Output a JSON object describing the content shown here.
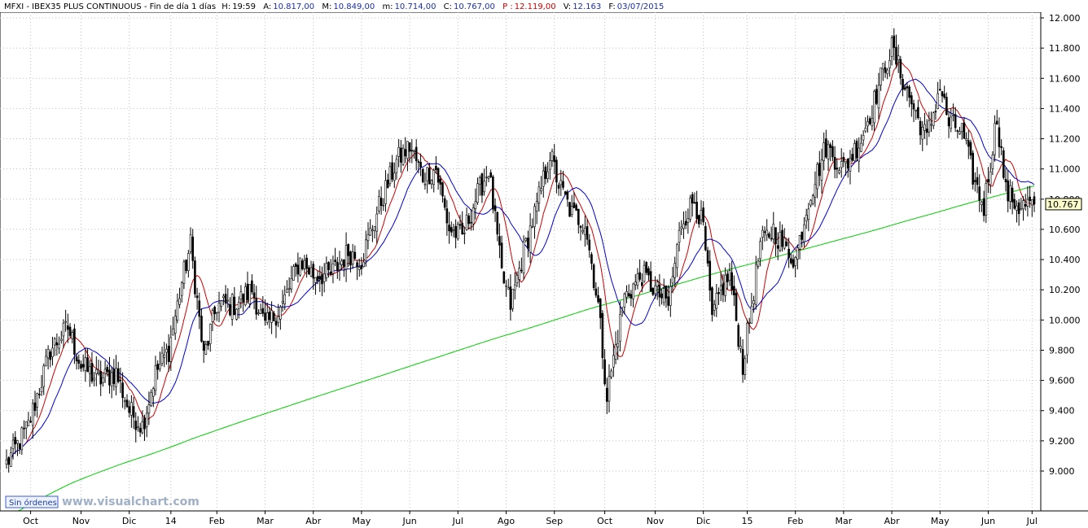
{
  "header": {
    "symbol": "MFXI - IBEX35 PLUS CONTINUOUS - Fin de día 1 días",
    "h_label": "H:",
    "h_value": "19:59",
    "a_label": "A:",
    "a_value": "10.817,00",
    "m_label": "M:",
    "m_value": "10.849,00",
    "min_label": "m:",
    "min_value": "10.714,00",
    "c_label": "C:",
    "c_value": "10.767,00",
    "p_label": "P :",
    "p_value": "12.119,00",
    "v_label": "V:",
    "v_value": "12.163",
    "f_label": "F:",
    "f_value": "03/07/2015"
  },
  "badge": {
    "label": "Sin órdenes"
  },
  "watermark": {
    "text": "www.visualchart.com"
  },
  "colors": {
    "candle": "#000000",
    "ma_fast": "#cc0000",
    "ma_mid": "#0000cc",
    "ma_slow": "#00cc00",
    "last_label_bg": "#ffffcc",
    "header_bg": "#ffffff",
    "grid": "#bfbfbf"
  },
  "chart_data": {
    "type": "candlestick",
    "title": "",
    "ylim": [
      8800,
      12050
    ],
    "y_ticks": [
      "12.000",
      "11.800",
      "11.600",
      "11.400",
      "11.200",
      "11.000",
      "10.800",
      "10.600",
      "10.400",
      "10.200",
      "10.000",
      "9.800",
      "9.600",
      "9.400",
      "9.200",
      "9.000"
    ],
    "y_tick_values": [
      12000,
      11800,
      11600,
      11400,
      11200,
      11000,
      10800,
      10600,
      10400,
      10200,
      10000,
      9800,
      9600,
      9400,
      9200,
      9000
    ],
    "x_ticks": [
      "Oct",
      "Nov",
      "Dic",
      "14",
      "Feb",
      "Mar",
      "Abr",
      "May",
      "Jun",
      "Jul",
      "Ago",
      "Sep",
      "Oct",
      "Nov",
      "Dic",
      "15",
      "Feb",
      "Mar",
      "Abr",
      "May",
      "Jun",
      "Jul"
    ],
    "x_tick_index": [
      11,
      34,
      56,
      75,
      96,
      118,
      140,
      162,
      184,
      206,
      228,
      250,
      273,
      296,
      318,
      338,
      360,
      382,
      404,
      426,
      448,
      468
    ],
    "bar_count": 470,
    "close_anchors": [
      [
        0,
        9050
      ],
      [
        10,
        9300
      ],
      [
        20,
        9800
      ],
      [
        28,
        9950
      ],
      [
        34,
        9700
      ],
      [
        42,
        9600
      ],
      [
        50,
        9650
      ],
      [
        56,
        9400
      ],
      [
        62,
        9300
      ],
      [
        68,
        9650
      ],
      [
        74,
        9800
      ],
      [
        80,
        10250
      ],
      [
        84,
        10500
      ],
      [
        90,
        9750
      ],
      [
        96,
        10100
      ],
      [
        104,
        10100
      ],
      [
        112,
        10200
      ],
      [
        118,
        9950
      ],
      [
        126,
        10100
      ],
      [
        134,
        10400
      ],
      [
        140,
        10300
      ],
      [
        148,
        10300
      ],
      [
        156,
        10450
      ],
      [
        162,
        10400
      ],
      [
        170,
        10750
      ],
      [
        178,
        11050
      ],
      [
        184,
        11150
      ],
      [
        190,
        10950
      ],
      [
        196,
        11000
      ],
      [
        202,
        10600
      ],
      [
        208,
        10550
      ],
      [
        214,
        10800
      ],
      [
        220,
        11000
      ],
      [
        226,
        10300
      ],
      [
        230,
        10100
      ],
      [
        236,
        10450
      ],
      [
        242,
        10750
      ],
      [
        248,
        11100
      ],
      [
        252,
        10900
      ],
      [
        258,
        10700
      ],
      [
        264,
        10650
      ],
      [
        270,
        10100
      ],
      [
        274,
        9500
      ],
      [
        282,
        10150
      ],
      [
        290,
        10300
      ],
      [
        296,
        10200
      ],
      [
        302,
        10100
      ],
      [
        308,
        10650
      ],
      [
        314,
        10800
      ],
      [
        318,
        10600
      ],
      [
        322,
        10000
      ],
      [
        326,
        10200
      ],
      [
        330,
        10300
      ],
      [
        336,
        9700
      ],
      [
        340,
        10100
      ],
      [
        344,
        10500
      ],
      [
        350,
        10600
      ],
      [
        354,
        10500
      ],
      [
        360,
        10400
      ],
      [
        366,
        10800
      ],
      [
        374,
        11150
      ],
      [
        382,
        11000
      ],
      [
        390,
        11200
      ],
      [
        396,
        11450
      ],
      [
        400,
        11650
      ],
      [
        404,
        11800
      ],
      [
        410,
        11550
      ],
      [
        414,
        11400
      ],
      [
        420,
        11200
      ],
      [
        426,
        11550
      ],
      [
        430,
        11300
      ],
      [
        436,
        11250
      ],
      [
        442,
        10900
      ],
      [
        446,
        10750
      ],
      [
        452,
        11350
      ],
      [
        456,
        10850
      ],
      [
        462,
        10750
      ],
      [
        469,
        10767
      ]
    ],
    "last_value_label": "10.767",
    "series": [
      {
        "name": "",
        "type": "moving-average",
        "period": 10,
        "color_key": "ma_fast"
      },
      {
        "name": "",
        "type": "moving-average",
        "period": 20,
        "color_key": "ma_mid"
      },
      {
        "name": "",
        "type": "moving-average",
        "period": 200,
        "color_key": "ma_slow"
      }
    ],
    "grid": true,
    "legend": "none"
  }
}
